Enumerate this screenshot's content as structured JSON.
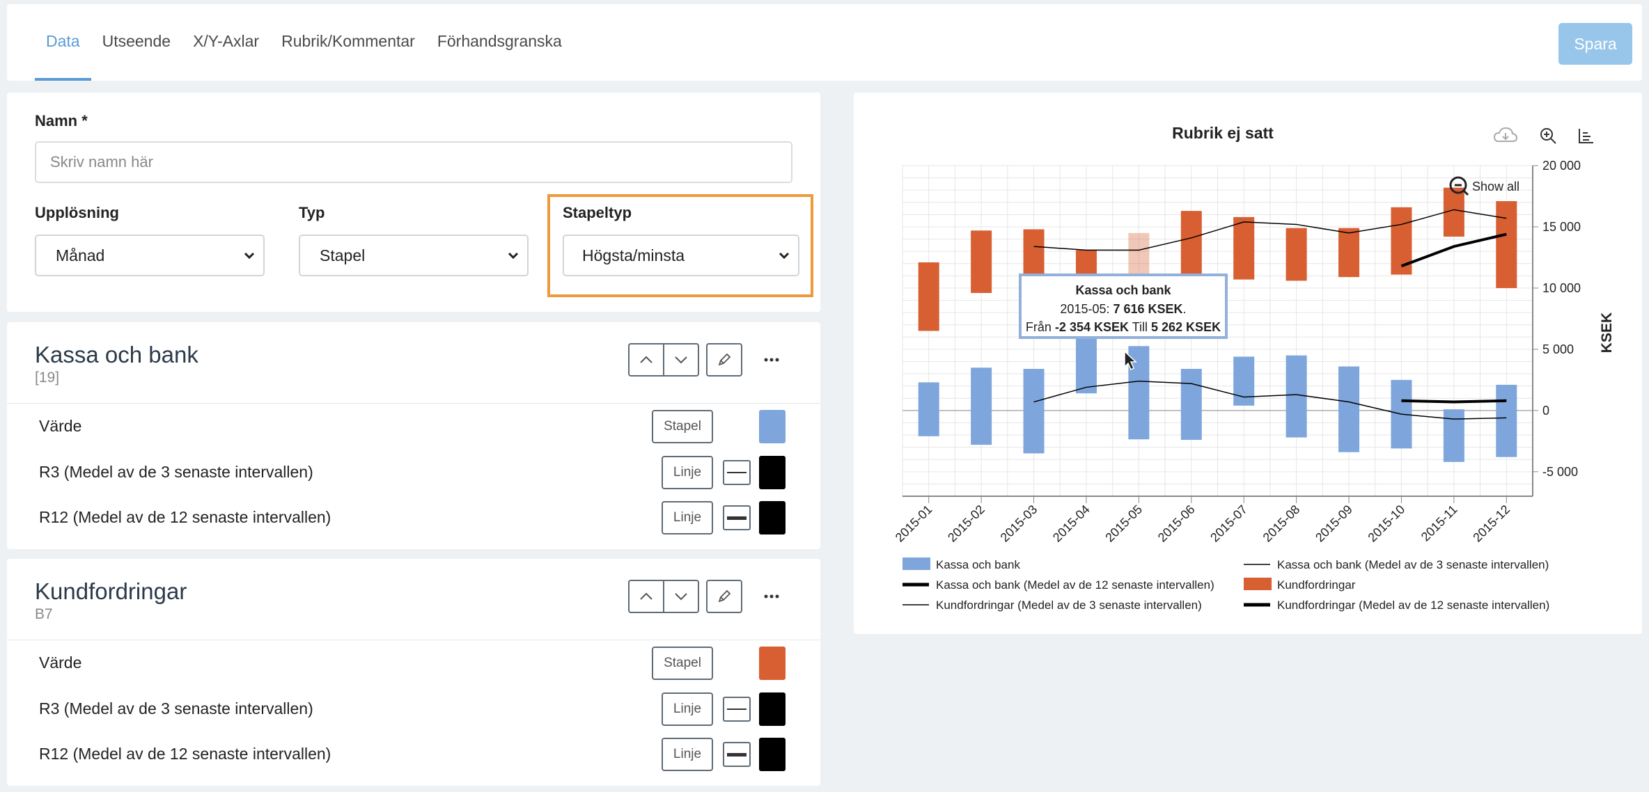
{
  "tabs": [
    "Data",
    "Utseende",
    "X/Y-Axlar",
    "Rubrik/Kommentar",
    "Förhandsgranska"
  ],
  "save_label": "Spara",
  "form": {
    "name_label": "Namn *",
    "name_placeholder": "Skriv namn här",
    "resolution_label": "Upplösning",
    "resolution_value": "Månad",
    "type_label": "Typ",
    "type_value": "Stapel",
    "bar_type_label": "Stapeltyp",
    "bar_type_value": "Högsta/minsta"
  },
  "series": [
    {
      "title": "Kassa och bank",
      "subtitle": "[19]",
      "rows": [
        {
          "label": "Värde",
          "button": "Stapel",
          "color": "#7ea6dc"
        },
        {
          "label": "R3 (Medel av de 3 senaste intervallen)",
          "button": "Linje",
          "color": "#000000"
        },
        {
          "label": "R12 (Medel av de 12 senaste intervallen)",
          "button": "Linje",
          "color": "#000000"
        }
      ]
    },
    {
      "title": "Kundfordringar",
      "subtitle": "B7",
      "rows": [
        {
          "label": "Värde",
          "button": "Stapel",
          "color": "#d85f32"
        },
        {
          "label": "R3 (Medel av de 3 senaste intervallen)",
          "button": "Linje",
          "color": "#000000"
        },
        {
          "label": "R12 (Medel av de 12 senaste intervallen)",
          "button": "Linje",
          "color": "#000000"
        }
      ]
    }
  ],
  "chart_data": {
    "type": "bar",
    "title": "Rubrik ej satt",
    "ylabel": "KSEK",
    "ylim": [
      -7000,
      20000
    ],
    "yticks": [
      "-5 000",
      "0",
      "5 000",
      "10 000",
      "15 000",
      "20 000"
    ],
    "ytick_values": [
      -5000,
      0,
      5000,
      10000,
      15000,
      20000
    ],
    "categories": [
      "2015-01",
      "2015-02",
      "2015-03",
      "2015-04",
      "2015-05",
      "2015-06",
      "2015-07",
      "2015-08",
      "2015-09",
      "2015-10",
      "2015-11",
      "2015-12"
    ],
    "grid": true,
    "show_all_label": "Show all",
    "floating_series": [
      {
        "name": "Kassa och bank",
        "color": "#7ea6dc",
        "low": [
          -2100,
          -2800,
          -3500,
          1400,
          -2354,
          -2400,
          400,
          -2200,
          -3400,
          -3100,
          -4200,
          -3800
        ],
        "high": [
          2300,
          3500,
          3400,
          5900,
          5262,
          3400,
          4400,
          4500,
          3600,
          2500,
          100,
          2100
        ]
      },
      {
        "name": "Kundfordringar",
        "color": "#d85f32",
        "low": [
          6500,
          9600,
          8000,
          8300,
          8600,
          9600,
          10700,
          10600,
          10900,
          11100,
          14200,
          10000
        ],
        "high": [
          12100,
          14700,
          14800,
          13100,
          14500,
          16300,
          15800,
          14900,
          14900,
          16600,
          18200,
          17100
        ]
      }
    ],
    "line_series": [
      {
        "name": "Kassa och bank (Medel av de 3 senaste intervallen)",
        "width": 1.5,
        "values": [
          null,
          null,
          700,
          1900,
          2400,
          2200,
          1100,
          1300,
          700,
          -300,
          -700,
          -600
        ]
      },
      {
        "name": "Kassa och bank (Medel av de 12 senaste intervallen)",
        "width": 4,
        "values": [
          null,
          null,
          null,
          null,
          null,
          null,
          null,
          null,
          null,
          800,
          700,
          800
        ]
      },
      {
        "name": "Kundfordringar (Medel av de 3 senaste intervallen)",
        "width": 1.5,
        "values": [
          null,
          null,
          13400,
          13100,
          13100,
          14100,
          15400,
          15200,
          14500,
          15200,
          16400,
          15700
        ]
      },
      {
        "name": "Kundfordringar (Medel av de 12 senaste intervallen)",
        "width": 4,
        "values": [
          null,
          null,
          null,
          null,
          null,
          null,
          null,
          null,
          null,
          11800,
          13400,
          14400
        ]
      }
    ],
    "legend": [
      {
        "name": "Kassa och bank",
        "kind": "box",
        "color": "#7ea6dc"
      },
      {
        "name": "Kassa och bank (Medel av de 3 senaste intervallen)",
        "kind": "thin"
      },
      {
        "name": "Kassa och bank (Medel av de 12 senaste intervallen)",
        "kind": "thick"
      },
      {
        "name": "Kundfordringar",
        "kind": "box",
        "color": "#d85f32"
      },
      {
        "name": "Kundfordringar (Medel av de 3 senaste intervallen)",
        "kind": "thin"
      },
      {
        "name": "Kundfordringar (Medel av de 12 senaste intervallen)",
        "kind": "thick"
      }
    ],
    "legend_placement": "bottom",
    "tooltip": {
      "title": "Kassa och bank",
      "line1_prefix": "2015-05: ",
      "line1_value": "7 616 KSEK",
      "line1_suffix": ".",
      "line2_prefix": "Från ",
      "line2_from": "-2 354 KSEK",
      "line2_mid": " Till ",
      "line2_to": "5 262 KSEK"
    }
  }
}
